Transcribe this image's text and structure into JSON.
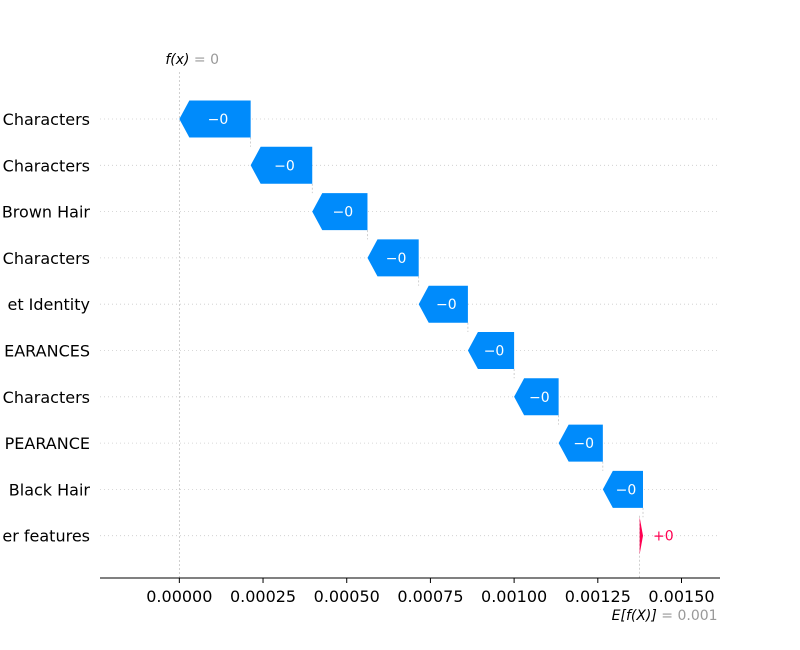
{
  "chart_data": {
    "type": "waterfall",
    "features": [
      {
        "label": "Characters",
        "value_label": "−0",
        "start": 0.000213,
        "end": 0.0
      },
      {
        "label": "Characters",
        "value_label": "−0",
        "start": 0.000397,
        "end": 0.000213
      },
      {
        "label": "Brown Hair",
        "value_label": "−0",
        "start": 0.000562,
        "end": 0.000397
      },
      {
        "label": "Characters",
        "value_label": "−0",
        "start": 0.000715,
        "end": 0.000562
      },
      {
        "label": "et Identity",
        "value_label": "−0",
        "start": 0.000862,
        "end": 0.000715
      },
      {
        "label": "EARANCES",
        "value_label": "−0",
        "start": 0.001,
        "end": 0.000862
      },
      {
        "label": "Characters",
        "value_label": "−0",
        "start": 0.001133,
        "end": 0.001
      },
      {
        "label": "PEARANCE",
        "value_label": "−0",
        "start": 0.001265,
        "end": 0.001133
      },
      {
        "label": "Black Hair",
        "value_label": "−0",
        "start": 0.001385,
        "end": 0.001265
      },
      {
        "label": "er features",
        "value_label": "+0",
        "start": 0.001375,
        "end": 0.001385
      }
    ],
    "fx_label": {
      "name": "f(x)",
      "value": " = 0"
    },
    "efx_label": {
      "name": "E[f(X)]",
      "value": " = 0.001"
    },
    "x_ticks": [
      "0.00000",
      "0.00025",
      "0.00050",
      "0.00075",
      "0.00100",
      "0.00125",
      "0.00150"
    ],
    "x_tick_values": [
      0,
      0.00025,
      0.0005,
      0.00075,
      0.001,
      0.00125,
      0.0015
    ],
    "xlim": [
      -0.000237,
      0.001615
    ],
    "fx_value": 0.0,
    "efx_value": 0.001375,
    "colors": {
      "negative": "#008bfb",
      "positive": "#ff0051",
      "axis": "#000000",
      "muted": "#999999",
      "grid": "#cccccc"
    }
  }
}
